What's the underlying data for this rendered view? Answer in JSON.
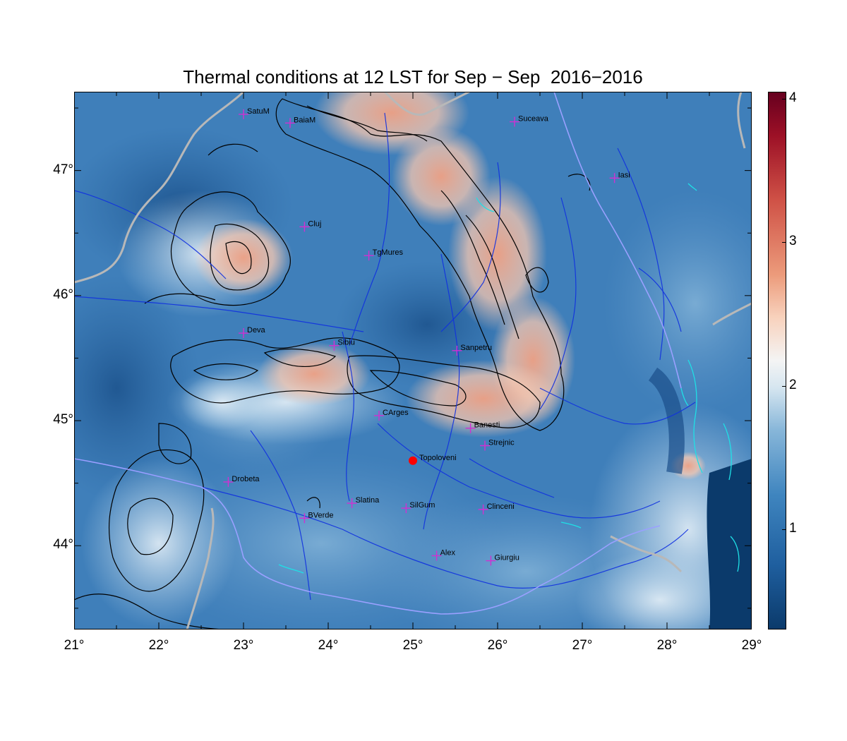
{
  "title": "Thermal conditions at 12 LST for Sep − Sep  2016−2016",
  "map": {
    "extent": {
      "lon": [
        21,
        29
      ],
      "lat": [
        43.33,
        47.63
      ]
    },
    "x_ticks": [
      "21°",
      "22°",
      "23°",
      "24°",
      "25°",
      "26°",
      "27°",
      "28°",
      "29°"
    ],
    "x_tick_values": [
      21,
      22,
      23,
      24,
      25,
      26,
      27,
      28,
      29
    ],
    "y_ticks": [
      "44°",
      "45°",
      "46°",
      "47°"
    ],
    "y_tick_values": [
      44,
      45,
      46,
      47
    ],
    "cities": [
      {
        "name": "SatuM",
        "lon": 23.0,
        "lat": 47.45
      },
      {
        "name": "BaiaM",
        "lon": 23.55,
        "lat": 47.38
      },
      {
        "name": "Suceava",
        "lon": 26.2,
        "lat": 47.39
      },
      {
        "name": "Iasi",
        "lon": 27.38,
        "lat": 46.94
      },
      {
        "name": "Cluj",
        "lon": 23.72,
        "lat": 46.55
      },
      {
        "name": "TgMures",
        "lon": 24.48,
        "lat": 46.32
      },
      {
        "name": "Deva",
        "lon": 23.0,
        "lat": 45.7
      },
      {
        "name": "Sibiu",
        "lon": 24.07,
        "lat": 45.6
      },
      {
        "name": "Sanpetru",
        "lon": 25.52,
        "lat": 45.56
      },
      {
        "name": "CArges",
        "lon": 24.6,
        "lat": 45.04
      },
      {
        "name": "Banesti",
        "lon": 25.68,
        "lat": 44.94
      },
      {
        "name": "Strejnic",
        "lon": 25.85,
        "lat": 44.8
      },
      {
        "name": "Drobeta",
        "lon": 22.82,
        "lat": 44.51
      },
      {
        "name": "Slatina",
        "lon": 24.28,
        "lat": 44.34
      },
      {
        "name": "SilGum",
        "lon": 24.92,
        "lat": 44.3
      },
      {
        "name": "Clinceni",
        "lon": 25.83,
        "lat": 44.29
      },
      {
        "name": "BVerde",
        "lon": 23.72,
        "lat": 44.22
      },
      {
        "name": "Alex",
        "lon": 25.28,
        "lat": 43.92
      },
      {
        "name": "Giurgiu",
        "lon": 25.92,
        "lat": 43.88
      }
    ],
    "highlight": {
      "name": "Topoloveni",
      "lon": 25.0,
      "lat": 44.68,
      "color": "#ff0000"
    },
    "city_marker_color": "#d22fd2"
  },
  "colorbar": {
    "ticks": [
      "1",
      "2",
      "3",
      "4"
    ],
    "tick_values": [
      1,
      2,
      3,
      4
    ],
    "range": [
      0.3,
      4.05
    ],
    "low_color": "#0b3a6b",
    "mid_color": "#f4f4f4",
    "high_color": "#67001f"
  }
}
